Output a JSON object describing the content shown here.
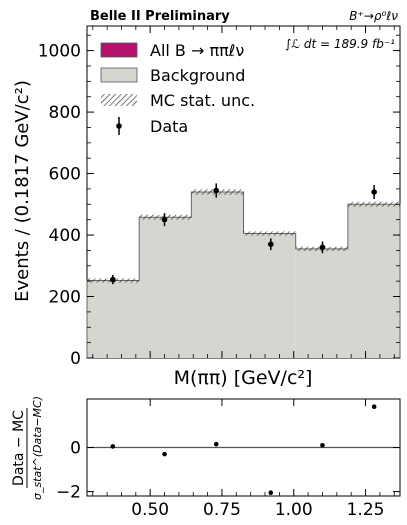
{
  "chart_data": [
    {
      "type": "bar",
      "header_left": "Belle II Preliminary",
      "header_right": "B⁺→ρ⁰ℓν",
      "luminosity": "∫ℒ dt = 189.9 fb⁻¹",
      "xlabel": "M(ππ) [GeV/c²]",
      "ylabel": "Events / (0.1817 GeV/c²)",
      "xlim": [
        0.28,
        1.37
      ],
      "ylim": [
        0,
        1080
      ],
      "y_ticks": [
        0,
        200,
        400,
        600,
        800,
        1000
      ],
      "bin_edges": [
        0.28,
        0.4617,
        0.6434,
        0.8251,
        1.0068,
        1.1885,
        1.37
      ],
      "series": [
        {
          "name": "All B → ππℓν",
          "kind": "signal",
          "color": "#b5116e",
          "values": [
            0,
            0,
            0,
            0,
            0,
            0
          ]
        },
        {
          "name": "Background",
          "kind": "background",
          "color": "#d6d6d0",
          "values": [
            252,
            458,
            540,
            405,
            355,
            500
          ]
        },
        {
          "name": "MC stat. unc.",
          "kind": "uncertainty",
          "values": [
            7,
            8,
            9,
            7,
            7,
            8
          ]
        },
        {
          "name": "Data",
          "kind": "data",
          "x": [
            0.37,
            0.55,
            0.73,
            0.92,
            1.1,
            1.28
          ],
          "values": [
            255,
            450,
            545,
            370,
            360,
            540
          ],
          "errors": [
            15,
            21,
            23,
            19,
            19,
            23
          ]
        }
      ],
      "legend_position": "top-left"
    },
    {
      "type": "scatter",
      "ylabel_numerator": "Data − MC",
      "ylabel_denominator": "σ_stat^(Data−MC)",
      "xlim": [
        0.28,
        1.37
      ],
      "ylim": [
        -2.2,
        2.2
      ],
      "x_ticks": [
        0.5,
        0.75,
        1.0,
        1.25
      ],
      "x_tick_labels": [
        "0.50",
        "0.75",
        "1.00",
        "1.25"
      ],
      "y_ticks": [
        -2,
        0
      ],
      "y_tick_labels": [
        "−2",
        "0"
      ],
      "x": [
        0.37,
        0.55,
        0.73,
        0.92,
        1.1,
        1.28
      ],
      "values": [
        0.05,
        -0.3,
        0.15,
        -2.05,
        0.1,
        1.85
      ],
      "reference_line": 0
    }
  ]
}
